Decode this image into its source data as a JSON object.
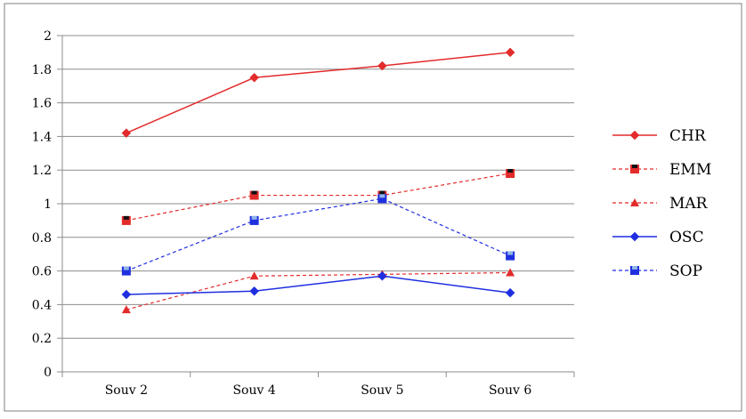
{
  "chart_data": {
    "type": "line",
    "categories": [
      "Souv 2",
      "Souv 4",
      "Souv 5",
      "Souv 6"
    ],
    "ylim": [
      0,
      2
    ],
    "yticks": [
      0,
      0.2,
      0.4,
      0.6,
      0.8,
      1,
      1.2,
      1.4,
      1.6,
      1.8,
      2
    ],
    "ytick_labels": [
      "0",
      "0.2",
      "0.4",
      "0.6",
      "0.8",
      "1",
      "1.2",
      "1.4",
      "1.6",
      "1.8",
      "2"
    ],
    "grid": true,
    "legend_position": "right",
    "series": [
      {
        "name": "CHR",
        "values": [
          1.42,
          1.75,
          1.82,
          1.9
        ],
        "color": "#e32b2b",
        "dashed": false,
        "marker": "diamond",
        "marker_fill": "#e32b2b"
      },
      {
        "name": "EMM",
        "values": [
          0.9,
          1.05,
          1.05,
          1.18
        ],
        "color": "#e32b2b",
        "dashed": true,
        "marker": "square",
        "marker_fill": "#e32b2b",
        "marker_core": "#111111"
      },
      {
        "name": "MAR",
        "values": [
          0.37,
          0.57,
          0.58,
          0.59
        ],
        "color": "#e32b2b",
        "dashed": true,
        "marker": "triangle",
        "marker_fill": "#e32b2b"
      },
      {
        "name": "OSC",
        "values": [
          0.46,
          0.48,
          0.57,
          0.47
        ],
        "color": "#1f2fe0",
        "dashed": false,
        "marker": "diamond",
        "marker_fill": "#1f2fe0"
      },
      {
        "name": "SOP",
        "values": [
          0.6,
          0.9,
          1.03,
          0.69
        ],
        "color": "#1f2fe0",
        "dashed": true,
        "marker": "square",
        "marker_fill": "#1f2fe0",
        "marker_core": "#8fb4e8"
      }
    ]
  }
}
